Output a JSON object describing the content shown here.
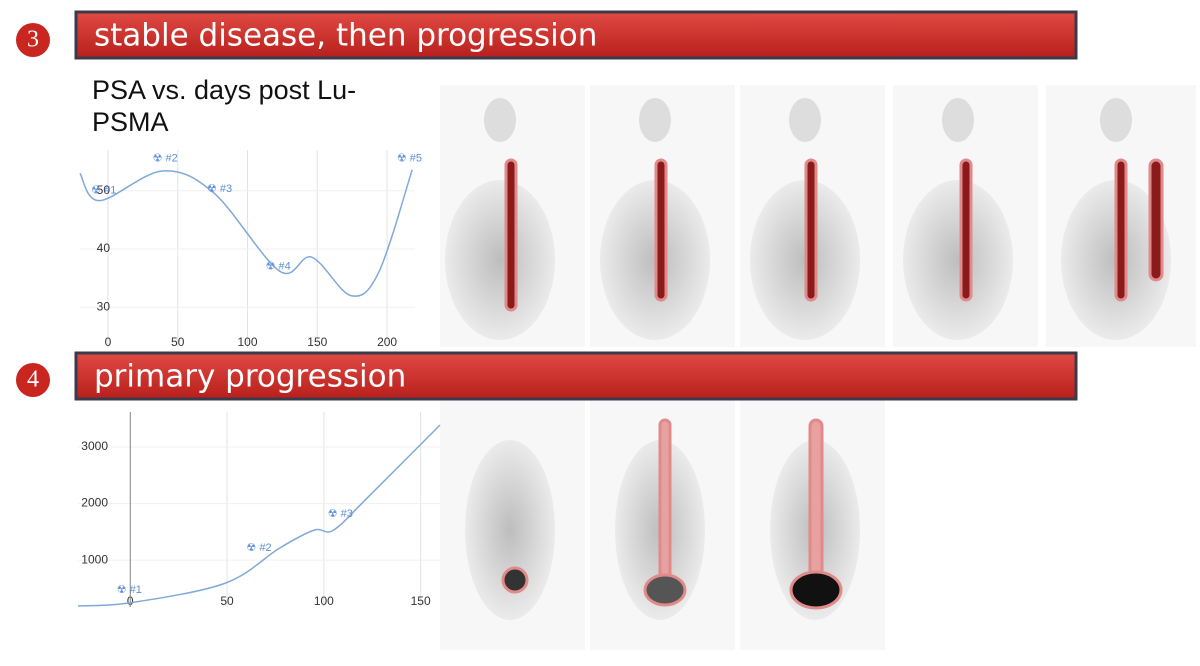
{
  "sections": [
    {
      "number": "3",
      "title": "stable disease, then progression"
    },
    {
      "number": "4",
      "title": "primary progression"
    }
  ],
  "chart_data": [
    {
      "type": "line",
      "title": "PSA vs. days post Lu-PSMA",
      "color": "#7fa9d9",
      "grid": true,
      "x": [
        -20,
        -6,
        39,
        76,
        123,
        146,
        174,
        194,
        218
      ],
      "values": [
        53,
        48.3,
        53.4,
        49.6,
        36.2,
        38.6,
        32,
        36,
        53.6
      ],
      "xlim": [
        -20,
        220
      ],
      "ylim": [
        23,
        57
      ],
      "xticks": [
        0,
        50,
        100,
        150,
        200
      ],
      "yticks": [
        30,
        40,
        50
      ],
      "annotations": [
        {
          "label": "☢ #1",
          "x": -12,
          "y": 50
        },
        {
          "label": "☢ #2",
          "x": 32,
          "y": 55.5
        },
        {
          "label": "☢ #3",
          "x": 71,
          "y": 50.3
        },
        {
          "label": "☢ #4",
          "x": 113,
          "y": 37
        },
        {
          "label": "☢ #5",
          "x": 207,
          "y": 55.5
        }
      ]
    },
    {
      "type": "line",
      "color": "#7fa9d9",
      "grid": true,
      "x": [
        -27,
        0,
        49,
        77,
        95,
        105,
        123,
        160
      ],
      "values": [
        190,
        245,
        590,
        1210,
        1530,
        1530,
        2120,
        3390
      ],
      "xlim": [
        -27,
        160
      ],
      "ylim": [
        170,
        3620
      ],
      "xticks": [
        0,
        50,
        100,
        150
      ],
      "yticks": [
        1000,
        2000,
        3000
      ],
      "annotations": [
        {
          "label": "☢ #1",
          "x": -7,
          "y": 470
        },
        {
          "label": "☢ #2",
          "x": 60,
          "y": 1214
        },
        {
          "label": "☢ #3",
          "x": 102,
          "y": 1816
        }
      ]
    }
  ]
}
